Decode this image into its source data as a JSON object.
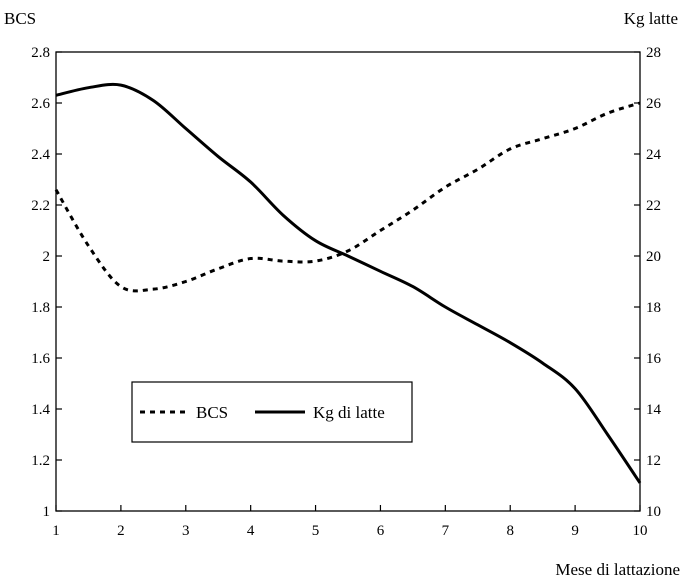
{
  "chart_data": {
    "type": "line",
    "x": [
      1,
      1.5,
      2,
      2.5,
      3,
      3.5,
      4,
      4.5,
      5,
      5.5,
      6,
      6.5,
      7,
      7.5,
      8,
      8.5,
      9,
      9.5,
      10
    ],
    "series": [
      {
        "name": "BCS",
        "axis": "left",
        "style": "dotted",
        "values": [
          2.26,
          2.04,
          1.88,
          1.87,
          1.9,
          1.95,
          1.99,
          1.98,
          1.98,
          2.02,
          2.1,
          2.18,
          2.27,
          2.34,
          2.42,
          2.46,
          2.5,
          2.56,
          2.6
        ]
      },
      {
        "name": "Kg di latte",
        "axis": "right",
        "style": "solid",
        "values": [
          26.3,
          26.6,
          26.7,
          26.1,
          25.0,
          23.9,
          22.9,
          21.6,
          20.6,
          20.0,
          19.4,
          18.8,
          18.0,
          17.3,
          16.6,
          15.8,
          14.8,
          13.0,
          11.1
        ]
      }
    ],
    "xlabel": "Mese di lattazione",
    "ylabel_left": "BCS",
    "ylabel_right": "Kg latte",
    "xlim": [
      1,
      10
    ],
    "ylim_left": [
      1,
      2.8
    ],
    "ylim_right": [
      10,
      28
    ],
    "xticks": [
      "1",
      "2",
      "3",
      "4",
      "5",
      "6",
      "7",
      "8",
      "9",
      "10"
    ],
    "yticks_left": [
      "1",
      "1.2",
      "1.4",
      "1.6",
      "1.8",
      "2",
      "2.2",
      "2.4",
      "2.6",
      "2.8"
    ],
    "yticks_right": [
      "10",
      "12",
      "14",
      "16",
      "18",
      "20",
      "22",
      "24",
      "26",
      "28"
    ],
    "grid": false,
    "legend_position": "lower-left"
  }
}
